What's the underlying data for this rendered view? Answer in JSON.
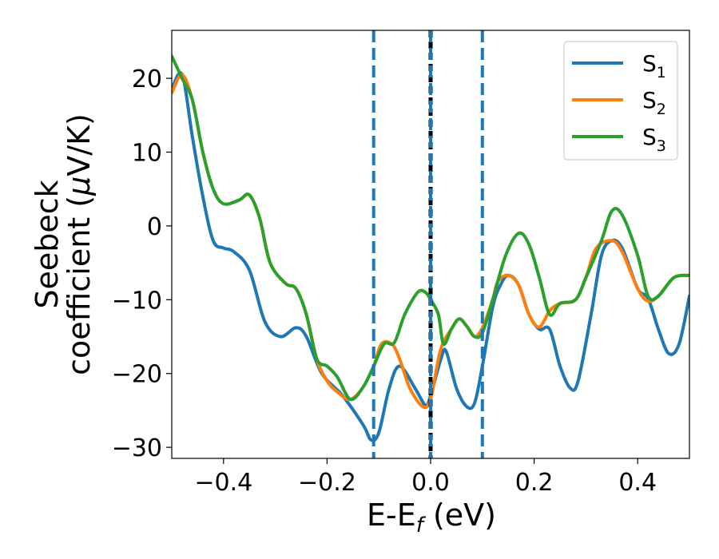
{
  "chart_data": {
    "type": "line",
    "xlabel_main": "E-E",
    "xlabel_sub": "f",
    "xlabel_unit": " (eV)",
    "ylabel_line1": "Seebeck",
    "ylabel_line2_prefix": "coefficient  (",
    "ylabel_mu": "μ",
    "ylabel_line2_suffix": "V/K)",
    "xlim": [
      -0.5,
      0.5
    ],
    "ylim": [
      -31.5,
      26.5
    ],
    "xticks": [
      -0.4,
      -0.2,
      0.0,
      0.2,
      0.4
    ],
    "xtick_labels": [
      "−0.4",
      "−0.2",
      "0.0",
      "0.2",
      "0.4"
    ],
    "yticks": [
      -30,
      -20,
      -10,
      0,
      10,
      20
    ],
    "ytick_labels": [
      "−30",
      "−20",
      "−10",
      "0",
      "10",
      "20"
    ],
    "grid": false,
    "legend_position": "top-right",
    "vlines": [
      {
        "x": -0.11,
        "style": "dashed",
        "color": "#1f77b4"
      },
      {
        "x": 0.0,
        "style": "dashed",
        "color": "#000000"
      },
      {
        "x": 0.0,
        "style": "dashed",
        "color": "#1f77b4"
      },
      {
        "x": 0.1,
        "style": "dashed",
        "color": "#1f77b4"
      }
    ],
    "series": [
      {
        "name": "S",
        "sub": "1",
        "color": "#1f77b4",
        "points": [
          [
            -0.5,
            18.5
          ],
          [
            -0.48,
            20.5
          ],
          [
            -0.46,
            12
          ],
          [
            -0.44,
            4
          ],
          [
            -0.42,
            -2
          ],
          [
            -0.4,
            -3
          ],
          [
            -0.38,
            -3.5
          ],
          [
            -0.35,
            -6
          ],
          [
            -0.32,
            -13
          ],
          [
            -0.29,
            -15
          ],
          [
            -0.26,
            -13.8
          ],
          [
            -0.24,
            -15
          ],
          [
            -0.21,
            -20
          ],
          [
            -0.17,
            -23
          ],
          [
            -0.13,
            -27
          ],
          [
            -0.115,
            -29
          ],
          [
            -0.1,
            -28
          ],
          [
            -0.08,
            -22
          ],
          [
            -0.06,
            -19
          ],
          [
            -0.03,
            -22
          ],
          [
            -0.01,
            -24.3
          ],
          [
            0.0,
            -23
          ],
          [
            0.02,
            -18
          ],
          [
            0.03,
            -17
          ],
          [
            0.05,
            -22
          ],
          [
            0.07,
            -24.5
          ],
          [
            0.085,
            -24
          ],
          [
            0.1,
            -19
          ],
          [
            0.12,
            -11
          ],
          [
            0.135,
            -8
          ],
          [
            0.15,
            -6.7
          ],
          [
            0.17,
            -8
          ],
          [
            0.19,
            -12
          ],
          [
            0.21,
            -14
          ],
          [
            0.23,
            -14
          ],
          [
            0.25,
            -19
          ],
          [
            0.27,
            -22
          ],
          [
            0.285,
            -21
          ],
          [
            0.31,
            -12
          ],
          [
            0.33,
            -4
          ],
          [
            0.35,
            -2
          ],
          [
            0.37,
            -3
          ],
          [
            0.4,
            -8.5
          ],
          [
            0.42,
            -9.8
          ],
          [
            0.44,
            -14
          ],
          [
            0.46,
            -17.3
          ],
          [
            0.48,
            -16
          ],
          [
            0.5,
            -9.5
          ]
        ]
      },
      {
        "name": "S",
        "sub": "2",
        "color": "#ff7f0e",
        "points": [
          [
            -0.5,
            18
          ],
          [
            -0.48,
            20.5
          ],
          [
            -0.46,
            17
          ],
          [
            -0.44,
            10
          ],
          [
            -0.42,
            5
          ],
          [
            -0.4,
            3
          ],
          [
            -0.37,
            3.5
          ],
          [
            -0.35,
            4.2
          ],
          [
            -0.33,
            1
          ],
          [
            -0.31,
            -5
          ],
          [
            -0.28,
            -7.8
          ],
          [
            -0.26,
            -8.5
          ],
          [
            -0.24,
            -12
          ],
          [
            -0.22,
            -18
          ],
          [
            -0.2,
            -21
          ],
          [
            -0.18,
            -22.5
          ],
          [
            -0.155,
            -23.5
          ],
          [
            -0.13,
            -21.8
          ],
          [
            -0.11,
            -19
          ],
          [
            -0.095,
            -16
          ],
          [
            -0.075,
            -16
          ],
          [
            -0.06,
            -18
          ],
          [
            -0.04,
            -22
          ],
          [
            -0.015,
            -24.5
          ],
          [
            0.0,
            -23.5
          ],
          [
            0.015,
            -18
          ],
          [
            0.025,
            -15.7
          ],
          [
            0.04,
            -14
          ],
          [
            0.055,
            -12.6
          ],
          [
            0.07,
            -13.6
          ],
          [
            0.085,
            -15
          ],
          [
            0.1,
            -13.8
          ],
          [
            0.12,
            -10
          ],
          [
            0.13,
            -7.5
          ],
          [
            0.15,
            -6.7
          ],
          [
            0.17,
            -8
          ],
          [
            0.19,
            -12
          ],
          [
            0.21,
            -13.7
          ],
          [
            0.23,
            -11.5
          ],
          [
            0.25,
            -10.5
          ],
          [
            0.28,
            -10
          ],
          [
            0.3,
            -7
          ],
          [
            0.32,
            -3
          ],
          [
            0.35,
            -2
          ],
          [
            0.37,
            -3.5
          ],
          [
            0.4,
            -8.5
          ],
          [
            0.42,
            -10.2
          ],
          [
            0.44,
            -9.5
          ],
          [
            0.47,
            -7
          ],
          [
            0.5,
            -6.7
          ]
        ]
      },
      {
        "name": "S",
        "sub": "3",
        "color": "#2ca02c",
        "points": [
          [
            -0.5,
            23
          ],
          [
            -0.48,
            20
          ],
          [
            -0.46,
            17
          ],
          [
            -0.44,
            10
          ],
          [
            -0.42,
            5
          ],
          [
            -0.4,
            3
          ],
          [
            -0.37,
            3.5
          ],
          [
            -0.35,
            4.2
          ],
          [
            -0.33,
            1
          ],
          [
            -0.31,
            -5
          ],
          [
            -0.28,
            -7.8
          ],
          [
            -0.26,
            -8.5
          ],
          [
            -0.24,
            -12
          ],
          [
            -0.22,
            -18
          ],
          [
            -0.2,
            -19
          ],
          [
            -0.18,
            -20.5
          ],
          [
            -0.155,
            -23.5
          ],
          [
            -0.13,
            -21.8
          ],
          [
            -0.11,
            -19
          ],
          [
            -0.09,
            -16
          ],
          [
            -0.07,
            -15.8
          ],
          [
            -0.05,
            -12
          ],
          [
            -0.025,
            -9
          ],
          [
            -0.01,
            -9
          ],
          [
            0.0,
            -10
          ],
          [
            0.015,
            -12
          ],
          [
            0.025,
            -16
          ],
          [
            0.04,
            -14
          ],
          [
            0.055,
            -12.6
          ],
          [
            0.07,
            -13.6
          ],
          [
            0.085,
            -15
          ],
          [
            0.1,
            -14.5
          ],
          [
            0.12,
            -10
          ],
          [
            0.145,
            -4
          ],
          [
            0.17,
            -1
          ],
          [
            0.19,
            -2.5
          ],
          [
            0.21,
            -7
          ],
          [
            0.23,
            -12
          ],
          [
            0.25,
            -10.5
          ],
          [
            0.28,
            -10
          ],
          [
            0.3,
            -7
          ],
          [
            0.33,
            -2
          ],
          [
            0.35,
            2
          ],
          [
            0.37,
            1.5
          ],
          [
            0.4,
            -4
          ],
          [
            0.42,
            -9.5
          ],
          [
            0.44,
            -9.5
          ],
          [
            0.47,
            -7
          ],
          [
            0.5,
            -6.7
          ]
        ]
      }
    ]
  }
}
